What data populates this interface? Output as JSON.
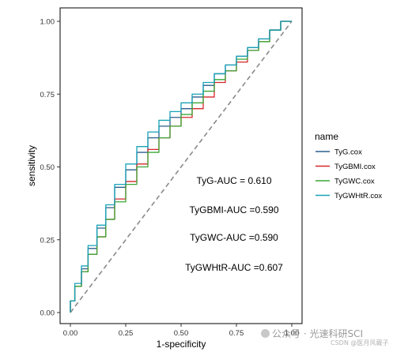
{
  "chart_data": {
    "type": "line",
    "xlabel": "1-specificity",
    "ylabel": "sensitivity",
    "xlim": [
      0,
      1
    ],
    "ylim": [
      0,
      1
    ],
    "x_ticks": [
      "0.00",
      "0.25",
      "0.50",
      "0.75",
      "1.00"
    ],
    "y_ticks": [
      "0.00",
      "0.25",
      "0.50",
      "0.75",
      "1.00"
    ],
    "grid": false,
    "legend": {
      "title": "name",
      "placement": "right"
    },
    "reference_line": {
      "style": "dashed",
      "color": "#8a8a8a",
      "points": [
        [
          0,
          0
        ],
        [
          1,
          1
        ]
      ]
    },
    "series": [
      {
        "name": "TyG.cox",
        "color": "#2b5e8c",
        "points": [
          [
            0,
            0
          ],
          [
            0.02,
            0.04
          ],
          [
            0.05,
            0.09
          ],
          [
            0.08,
            0.15
          ],
          [
            0.12,
            0.22
          ],
          [
            0.16,
            0.29
          ],
          [
            0.2,
            0.36
          ],
          [
            0.25,
            0.43
          ],
          [
            0.3,
            0.49
          ],
          [
            0.35,
            0.55
          ],
          [
            0.4,
            0.6
          ],
          [
            0.45,
            0.64
          ],
          [
            0.5,
            0.67
          ],
          [
            0.55,
            0.7
          ],
          [
            0.6,
            0.74
          ],
          [
            0.65,
            0.78
          ],
          [
            0.7,
            0.82
          ],
          [
            0.75,
            0.85
          ],
          [
            0.8,
            0.88
          ],
          [
            0.85,
            0.91
          ],
          [
            0.9,
            0.94
          ],
          [
            0.95,
            0.97
          ],
          [
            1,
            1
          ]
        ]
      },
      {
        "name": "TyGBMI.cox",
        "color": "#d62728",
        "points": [
          [
            0,
            0
          ],
          [
            0.02,
            0.04
          ],
          [
            0.05,
            0.09
          ],
          [
            0.08,
            0.14
          ],
          [
            0.12,
            0.2
          ],
          [
            0.16,
            0.26
          ],
          [
            0.2,
            0.32
          ],
          [
            0.25,
            0.39
          ],
          [
            0.3,
            0.45
          ],
          [
            0.35,
            0.51
          ],
          [
            0.4,
            0.56
          ],
          [
            0.45,
            0.6
          ],
          [
            0.5,
            0.64
          ],
          [
            0.55,
            0.67
          ],
          [
            0.6,
            0.7
          ],
          [
            0.65,
            0.74
          ],
          [
            0.7,
            0.79
          ],
          [
            0.75,
            0.83
          ],
          [
            0.8,
            0.86
          ],
          [
            0.85,
            0.9
          ],
          [
            0.9,
            0.93
          ],
          [
            0.95,
            0.97
          ],
          [
            1,
            1
          ]
        ]
      },
      {
        "name": "TyGWC.cox",
        "color": "#3aa635",
        "points": [
          [
            0,
            0
          ],
          [
            0.02,
            0.04
          ],
          [
            0.05,
            0.09
          ],
          [
            0.08,
            0.14
          ],
          [
            0.12,
            0.2
          ],
          [
            0.16,
            0.26
          ],
          [
            0.2,
            0.32
          ],
          [
            0.25,
            0.38
          ],
          [
            0.3,
            0.44
          ],
          [
            0.35,
            0.5
          ],
          [
            0.4,
            0.55
          ],
          [
            0.45,
            0.6
          ],
          [
            0.5,
            0.64
          ],
          [
            0.55,
            0.68
          ],
          [
            0.6,
            0.72
          ],
          [
            0.65,
            0.76
          ],
          [
            0.7,
            0.8
          ],
          [
            0.75,
            0.83
          ],
          [
            0.8,
            0.87
          ],
          [
            0.85,
            0.9
          ],
          [
            0.9,
            0.93
          ],
          [
            0.95,
            0.97
          ],
          [
            1,
            1
          ]
        ]
      },
      {
        "name": "TyGWHtR.cox",
        "color": "#17a2b8",
        "points": [
          [
            0,
            0
          ],
          [
            0.02,
            0.04
          ],
          [
            0.05,
            0.1
          ],
          [
            0.08,
            0.16
          ],
          [
            0.12,
            0.23
          ],
          [
            0.16,
            0.3
          ],
          [
            0.2,
            0.37
          ],
          [
            0.25,
            0.44
          ],
          [
            0.3,
            0.51
          ],
          [
            0.35,
            0.57
          ],
          [
            0.4,
            0.62
          ],
          [
            0.45,
            0.66
          ],
          [
            0.5,
            0.69
          ],
          [
            0.55,
            0.72
          ],
          [
            0.6,
            0.75
          ],
          [
            0.65,
            0.79
          ],
          [
            0.7,
            0.82
          ],
          [
            0.75,
            0.85
          ],
          [
            0.8,
            0.88
          ],
          [
            0.85,
            0.91
          ],
          [
            0.9,
            0.94
          ],
          [
            0.95,
            0.97
          ],
          [
            1,
            1
          ]
        ]
      }
    ],
    "annotations": [
      "TyG-AUC = 0.610",
      "TyGBMI-AUC =0.590",
      "TyGWC-AUC =0.590",
      "TyGWHtR-AUC =0.607"
    ]
  },
  "watermark": {
    "main": "公众号 · 光速科研SCI",
    "sub": "CSDN @医月风藏子"
  }
}
